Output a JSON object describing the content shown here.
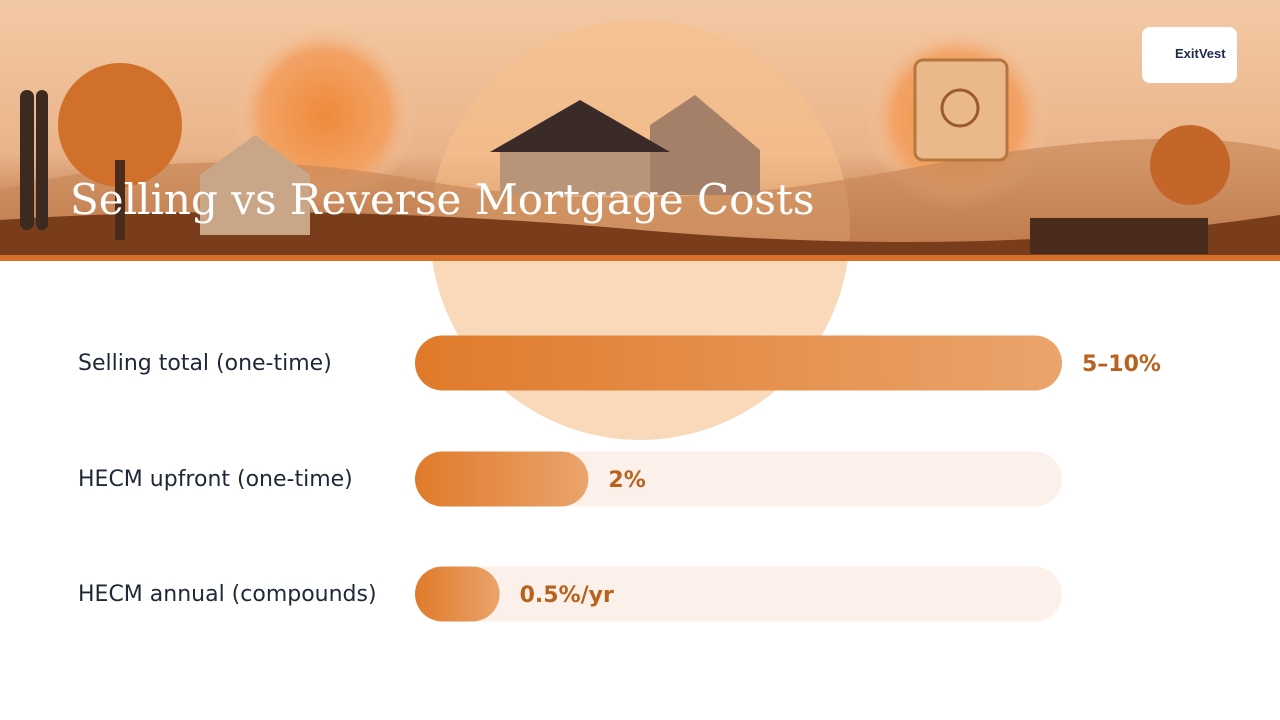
{
  "logo": "ExitVest",
  "chart_data": {
    "type": "bar",
    "orientation": "horizontal",
    "title": "Selling vs Reverse Mortgage Costs",
    "categories": [
      "Selling total (one-time)",
      "HECM upfront (one-time)",
      "HECM annual (compounds)"
    ],
    "values": [
      10,
      2,
      0.5
    ],
    "value_labels": [
      "5–10%",
      "2%",
      "0.5%/yr"
    ],
    "xlim": [
      0,
      10
    ],
    "color": "#e07a2a"
  }
}
